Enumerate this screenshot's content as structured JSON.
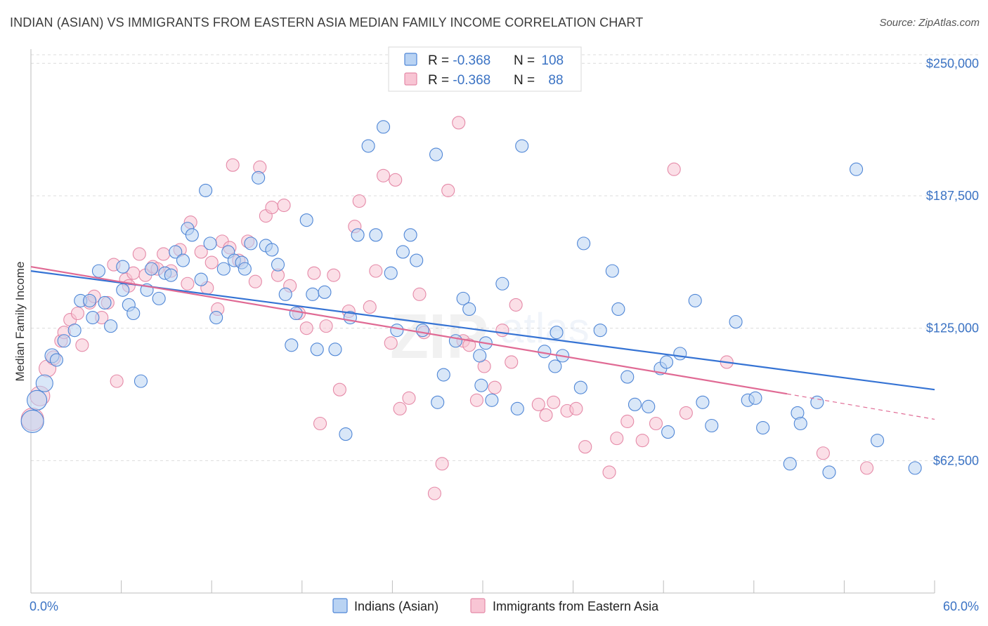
{
  "header": {
    "title": "INDIAN (ASIAN) VS IMMIGRANTS FROM EASTERN ASIA MEDIAN FAMILY INCOME CORRELATION CHART",
    "source": "Source: ZipAtlas.com"
  },
  "watermark": {
    "zip": "ZIP",
    "atlas": "atlas"
  },
  "legend_box": {
    "rows": [
      {
        "r_label": "R = ",
        "r_value": "-0.368",
        "n_label": "N = ",
        "n_value": "108",
        "color": "#6fa0e0",
        "fill": "#b9d3f3"
      },
      {
        "r_label": "R = ",
        "r_value": "-0.368",
        "n_label": "N = ",
        "n_value": "88",
        "color": "#e58aa8",
        "fill": "#f8c5d4"
      }
    ]
  },
  "chart_data": {
    "type": "scatter",
    "title": "INDIAN (ASIAN) VS IMMIGRANTS FROM EASTERN ASIA MEDIAN FAMILY INCOME CORRELATION CHART",
    "xlabel": "",
    "ylabel": "Median Family Income",
    "xlim": [
      0,
      60
    ],
    "ylim": [
      0,
      265000
    ],
    "x_tick_labels": [
      "0.0%",
      "60.0%"
    ],
    "y_ticks": [
      62500,
      125000,
      187500,
      250000
    ],
    "y_tick_labels": [
      "$62,500",
      "$125,000",
      "$187,500",
      "$250,000"
    ],
    "grid": true,
    "legend_position": "top-center",
    "series": [
      {
        "name": "Indians (Asian)",
        "color": "#4f86d6",
        "fill": "#b9d3f3",
        "trend": {
          "x": [
            0,
            60
          ],
          "y": [
            152000,
            96000
          ],
          "color": "#3573d4"
        },
        "points": [
          [
            0.1,
            81000,
            14
          ],
          [
            0.4,
            91000,
            12
          ],
          [
            0.9,
            99000,
            10
          ],
          [
            1.4,
            112000,
            8
          ],
          [
            1.7,
            110000,
            7
          ],
          [
            2.2,
            119000,
            7
          ],
          [
            2.9,
            124000,
            7
          ],
          [
            3.3,
            138000,
            7
          ],
          [
            3.9,
            138000,
            7
          ],
          [
            4.1,
            130000,
            7
          ],
          [
            4.5,
            152000,
            7
          ],
          [
            4.9,
            137000,
            7
          ],
          [
            5.3,
            126000,
            7
          ],
          [
            6.1,
            154000,
            7
          ],
          [
            6.1,
            143000,
            7
          ],
          [
            6.5,
            136000,
            7
          ],
          [
            6.8,
            132000,
            7
          ],
          [
            7.3,
            100000,
            7
          ],
          [
            7.7,
            143000,
            7
          ],
          [
            8.0,
            153000,
            7
          ],
          [
            8.5,
            139000,
            7
          ],
          [
            8.9,
            151000,
            7
          ],
          [
            9.3,
            150000,
            7
          ],
          [
            9.6,
            161000,
            7
          ],
          [
            10.1,
            157000,
            7
          ],
          [
            10.4,
            172000,
            7
          ],
          [
            10.7,
            169000,
            7
          ],
          [
            11.3,
            148000,
            7
          ],
          [
            11.6,
            190000,
            7
          ],
          [
            11.9,
            165000,
            7
          ],
          [
            12.3,
            130000,
            7
          ],
          [
            12.8,
            153000,
            7
          ],
          [
            13.1,
            161000,
            7
          ],
          [
            13.5,
            157000,
            7
          ],
          [
            14.0,
            156000,
            7
          ],
          [
            14.2,
            153000,
            7
          ],
          [
            14.6,
            165000,
            7
          ],
          [
            15.1,
            196000,
            7
          ],
          [
            15.6,
            164000,
            7
          ],
          [
            16.0,
            162000,
            7
          ],
          [
            16.4,
            155000,
            7
          ],
          [
            16.9,
            141000,
            7
          ],
          [
            17.3,
            117000,
            7
          ],
          [
            17.6,
            132000,
            7
          ],
          [
            18.3,
            176000,
            7
          ],
          [
            18.7,
            141000,
            7
          ],
          [
            19.0,
            115000,
            7
          ],
          [
            19.5,
            142000,
            7
          ],
          [
            20.2,
            115000,
            7
          ],
          [
            20.9,
            75000,
            7
          ],
          [
            21.2,
            130000,
            7
          ],
          [
            21.7,
            169000,
            7
          ],
          [
            22.4,
            211000,
            7
          ],
          [
            22.9,
            169000,
            7
          ],
          [
            23.4,
            220000,
            7
          ],
          [
            23.9,
            151000,
            7
          ],
          [
            24.3,
            124000,
            7
          ],
          [
            24.7,
            161000,
            7
          ],
          [
            25.2,
            169000,
            7
          ],
          [
            25.6,
            157000,
            7
          ],
          [
            26.0,
            124000,
            7
          ],
          [
            26.9,
            207000,
            7
          ],
          [
            27.0,
            90000,
            7
          ],
          [
            27.4,
            103000,
            7
          ],
          [
            28.2,
            119000,
            7
          ],
          [
            28.7,
            139000,
            7
          ],
          [
            29.1,
            134000,
            7
          ],
          [
            29.8,
            112000,
            7
          ],
          [
            29.9,
            98000,
            7
          ],
          [
            30.2,
            118000,
            7
          ],
          [
            30.6,
            91000,
            7
          ],
          [
            31.3,
            146000,
            7
          ],
          [
            32.3,
            87000,
            7
          ],
          [
            32.6,
            211000,
            7
          ],
          [
            34.1,
            114000,
            7
          ],
          [
            34.8,
            107000,
            7
          ],
          [
            34.9,
            123000,
            7
          ],
          [
            35.3,
            112000,
            7
          ],
          [
            36.5,
            97000,
            7
          ],
          [
            36.7,
            165000,
            7
          ],
          [
            37.8,
            124000,
            7
          ],
          [
            38.6,
            152000,
            7
          ],
          [
            39.0,
            134000,
            7
          ],
          [
            39.6,
            102000,
            7
          ],
          [
            40.1,
            89000,
            7
          ],
          [
            41.0,
            88000,
            7
          ],
          [
            41.8,
            106000,
            7
          ],
          [
            42.2,
            109000,
            7
          ],
          [
            42.3,
            76000,
            7
          ],
          [
            43.1,
            113000,
            7
          ],
          [
            44.1,
            138000,
            7
          ],
          [
            44.6,
            90000,
            7
          ],
          [
            45.2,
            79000,
            7
          ],
          [
            46.8,
            128000,
            7
          ],
          [
            47.6,
            91000,
            7
          ],
          [
            48.1,
            92000,
            7
          ],
          [
            48.6,
            78000,
            7
          ],
          [
            50.4,
            61000,
            7
          ],
          [
            50.9,
            85000,
            7
          ],
          [
            51.1,
            80000,
            7
          ],
          [
            52.2,
            90000,
            7
          ],
          [
            53.0,
            57000,
            7
          ],
          [
            54.8,
            200000,
            7
          ],
          [
            56.2,
            72000,
            7
          ],
          [
            58.7,
            59000,
            7
          ]
        ]
      },
      {
        "name": "Immigrants from Eastern Asia",
        "color": "#e58aa8",
        "fill": "#f8c5d4",
        "trend": {
          "x": [
            0,
            50.2
          ],
          "y": [
            154000,
            94000
          ],
          "color": "#e06a94",
          "dashed_to": [
            60,
            82000
          ]
        },
        "points": [
          [
            0.1,
            82000,
            14
          ],
          [
            0.6,
            93000,
            12
          ],
          [
            1.1,
            106000,
            10
          ],
          [
            1.5,
            111000,
            8
          ],
          [
            2.0,
            119000,
            7
          ],
          [
            2.2,
            123000,
            7
          ],
          [
            2.6,
            129000,
            7
          ],
          [
            3.1,
            132000,
            7
          ],
          [
            3.4,
            117000,
            7
          ],
          [
            3.9,
            137000,
            7
          ],
          [
            4.2,
            140000,
            7
          ],
          [
            4.7,
            130000,
            7
          ],
          [
            5.1,
            137000,
            7
          ],
          [
            5.5,
            155000,
            7
          ],
          [
            5.7,
            100000,
            7
          ],
          [
            6.3,
            148000,
            7
          ],
          [
            6.5,
            145000,
            7
          ],
          [
            6.8,
            151000,
            7
          ],
          [
            7.2,
            160000,
            7
          ],
          [
            7.6,
            150000,
            7
          ],
          [
            8.1,
            154000,
            7
          ],
          [
            8.4,
            153000,
            7
          ],
          [
            8.8,
            160000,
            7
          ],
          [
            9.3,
            152000,
            7
          ],
          [
            9.9,
            162000,
            7
          ],
          [
            10.4,
            146000,
            7
          ],
          [
            10.6,
            175000,
            7
          ],
          [
            11.3,
            161000,
            7
          ],
          [
            11.7,
            144000,
            7
          ],
          [
            12.0,
            156000,
            7
          ],
          [
            12.4,
            134000,
            7
          ],
          [
            12.7,
            166000,
            7
          ],
          [
            13.2,
            163000,
            7
          ],
          [
            13.4,
            202000,
            7
          ],
          [
            13.8,
            157000,
            7
          ],
          [
            14.4,
            166000,
            7
          ],
          [
            14.9,
            147000,
            7
          ],
          [
            15.2,
            201000,
            7
          ],
          [
            15.6,
            178000,
            7
          ],
          [
            16.0,
            182000,
            7
          ],
          [
            16.4,
            150000,
            7
          ],
          [
            16.8,
            183000,
            7
          ],
          [
            17.2,
            145000,
            7
          ],
          [
            17.8,
            132000,
            7
          ],
          [
            18.3,
            125000,
            7
          ],
          [
            18.8,
            151000,
            7
          ],
          [
            19.2,
            80000,
            7
          ],
          [
            19.6,
            126000,
            7
          ],
          [
            20.1,
            150000,
            7
          ],
          [
            20.5,
            96000,
            7
          ],
          [
            21.1,
            133000,
            7
          ],
          [
            21.5,
            173000,
            7
          ],
          [
            21.8,
            185000,
            7
          ],
          [
            22.5,
            135000,
            7
          ],
          [
            22.9,
            152000,
            7
          ],
          [
            23.4,
            197000,
            7
          ],
          [
            23.9,
            118000,
            7
          ],
          [
            24.2,
            195000,
            7
          ],
          [
            24.5,
            87000,
            7
          ],
          [
            25.1,
            92000,
            7
          ],
          [
            25.8,
            141000,
            7
          ],
          [
            26.1,
            123000,
            7
          ],
          [
            26.8,
            47000,
            7
          ],
          [
            27.3,
            61000,
            7
          ],
          [
            27.7,
            190000,
            7
          ],
          [
            28.4,
            222000,
            7
          ],
          [
            28.7,
            119000,
            7
          ],
          [
            29.1,
            117000,
            7
          ],
          [
            29.6,
            91000,
            7
          ],
          [
            30.1,
            107000,
            7
          ],
          [
            30.8,
            97000,
            7
          ],
          [
            31.3,
            124000,
            7
          ],
          [
            31.9,
            109000,
            7
          ],
          [
            32.2,
            136000,
            7
          ],
          [
            33.7,
            89000,
            7
          ],
          [
            34.2,
            84000,
            7
          ],
          [
            34.7,
            90000,
            7
          ],
          [
            35.6,
            86000,
            7
          ],
          [
            36.2,
            87000,
            7
          ],
          [
            36.8,
            69000,
            7
          ],
          [
            38.4,
            57000,
            7
          ],
          [
            38.9,
            73000,
            7
          ],
          [
            39.6,
            81000,
            7
          ],
          [
            40.6,
            72000,
            7
          ],
          [
            41.5,
            80000,
            7
          ],
          [
            42.7,
            200000,
            7
          ],
          [
            43.5,
            85000,
            7
          ],
          [
            46.2,
            109000,
            7
          ],
          [
            52.6,
            66000,
            7
          ],
          [
            55.5,
            59000,
            7
          ]
        ]
      }
    ]
  }
}
